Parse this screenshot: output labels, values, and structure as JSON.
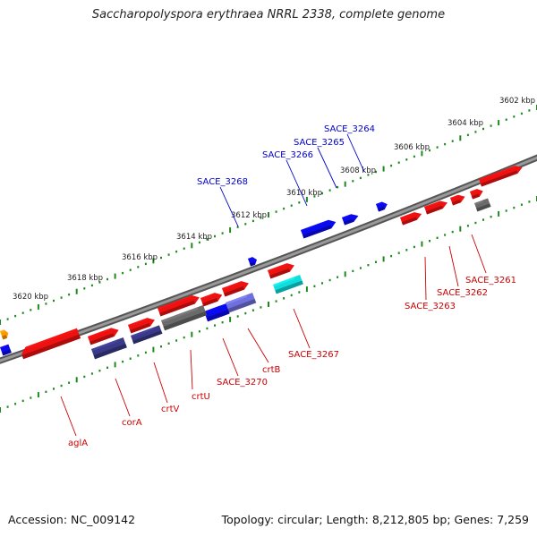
{
  "title": "Saccharopolyspora erythraea NRRL 2338, complete genome",
  "footer": {
    "accession": "Accession: NC_009142",
    "summary": "Topology: circular; Length: 8,212,805 bp; Genes: 7,259"
  },
  "colors": {
    "red": "#ee1111",
    "blue": "#0a0aee",
    "navy": "#3a3a88",
    "gray": "#6a6a6a",
    "cyan": "#11dddd",
    "lavender": "#7070dd",
    "orange": "#ff9900",
    "backbone": "#888888",
    "ticks": "#1e8a1e",
    "labelBlue": "#0000cc",
    "labelRed": "#cc0000"
  },
  "scale_labels": [
    {
      "text": "3602 kbp"
    },
    {
      "text": "3604 kbp"
    },
    {
      "text": "3606 kbp"
    },
    {
      "text": "3608 kbp"
    },
    {
      "text": "3610 kbp"
    },
    {
      "text": "3612 kbp"
    },
    {
      "text": "3614 kbp"
    },
    {
      "text": "3616 kbp"
    },
    {
      "text": "3618 kbp"
    },
    {
      "text": "3620 kbp"
    }
  ],
  "gene_labels_top": [
    "SACE_3264",
    "SACE_3265",
    "SACE_3266",
    "SACE_3268"
  ],
  "gene_labels_bottom": [
    "SACE_3261",
    "SACE_3262",
    "SACE_3263",
    "SACE_3267",
    "crtB",
    "SACE_3270",
    "crtU",
    "crtV",
    "corA",
    "aglA"
  ]
}
